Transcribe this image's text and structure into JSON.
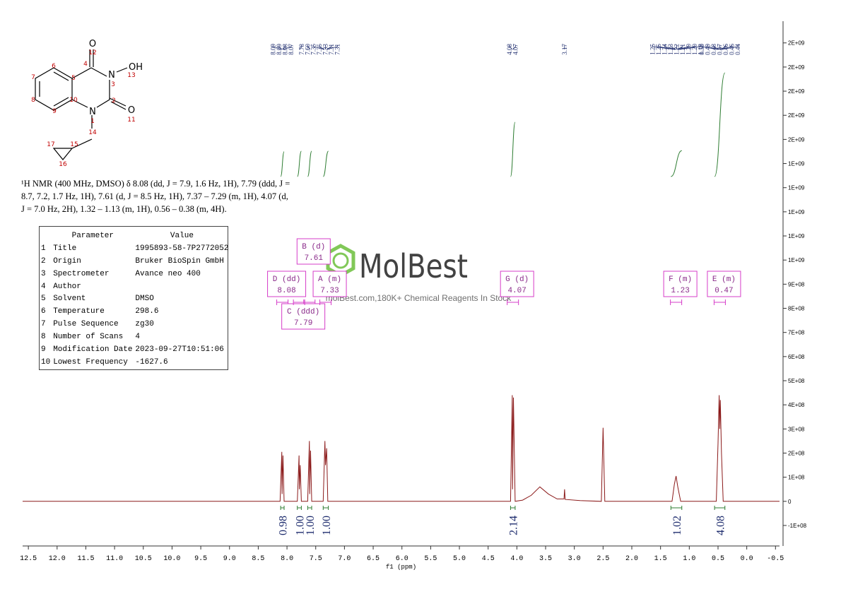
{
  "chart_data": {
    "type": "line",
    "x_label": "f1 (ppm)",
    "color": "#8b1a1a",
    "xlim": [
      12.6,
      -0.57
    ],
    "ylim": [
      -185000000,
      1990000000
    ],
    "xticks": [
      12.5,
      {
        "value": 12,
        "label": "12.0"
      },
      11.5,
      {
        "value": 11,
        "label": "11.0"
      },
      10.5,
      {
        "value": 10,
        "label": "10.0"
      },
      9.5,
      {
        "value": 9,
        "label": "9.0"
      },
      8.5,
      {
        "value": 8,
        "label": "8.0"
      },
      7.5,
      {
        "value": 7,
        "label": "7.0"
      },
      6.5,
      {
        "value": 6,
        "label": "6.0"
      },
      5.5,
      {
        "value": 5,
        "label": "5.0"
      },
      4.5,
      {
        "value": 4,
        "label": "4.0"
      },
      3.5,
      {
        "value": 3,
        "label": "3.0"
      },
      2.5,
      {
        "value": 2,
        "label": "2.0"
      },
      1.5,
      {
        "value": 1,
        "label": "1.0"
      },
      0.5,
      {
        "value": 0,
        "label": "0.0"
      },
      -0.5
    ],
    "yticks": [
      {
        "value": -100000000,
        "label": "-1E+08"
      },
      0,
      {
        "value": 100000000,
        "label": "1E+08"
      },
      {
        "value": 200000000,
        "label": "2E+08"
      },
      {
        "value": 300000000,
        "label": "3E+08"
      },
      {
        "value": 400000000,
        "label": "4E+08"
      },
      {
        "value": 500000000,
        "label": "5E+08"
      },
      {
        "value": 600000000,
        "label": "6E+08"
      },
      {
        "value": 700000000,
        "label": "7E+08"
      },
      {
        "value": 800000000,
        "label": "8E+08"
      },
      {
        "value": 900000000,
        "label": "9E+08"
      },
      {
        "value": 1000000000,
        "label": "1E+09"
      },
      {
        "value": 1100000000,
        "label": "1E+09"
      },
      {
        "value": 1200000000,
        "label": "1E+09"
      },
      {
        "value": 1300000000,
        "label": "1E+09"
      },
      {
        "value": 1400000000,
        "label": "1E+09"
      },
      {
        "value": 1500000000,
        "label": "2E+09"
      },
      {
        "value": 1600000000,
        "label": "2E+09"
      },
      {
        "value": 1700000000,
        "label": "2E+09"
      },
      {
        "value": 1800000000,
        "label": "2E+09"
      },
      {
        "value": 1900000000,
        "label": "2E+09"
      }
    ],
    "x": [
      12.6,
      8.12,
      8.09,
      8.085,
      8.07,
      8.05,
      7.82,
      7.79,
      7.785,
      7.77,
      7.75,
      7.64,
      7.61,
      7.605,
      7.59,
      7.57,
      7.37,
      7.34,
      7.33,
      7.31,
      7.29,
      4.11,
      4.08,
      4.075,
      4.06,
      4.03,
      3.9,
      3.75,
      3.6,
      3.45,
      3.3,
      3.18,
      3.17,
      3.16,
      2.9,
      2.53,
      2.5,
      2.47,
      1.3,
      1.26,
      1.23,
      1.2,
      1.15,
      0.53,
      0.5,
      0.48,
      0.47,
      0.46,
      0.44,
      0.41,
      -0.57
    ],
    "values": [
      0,
      0,
      205000000,
      30000000,
      190000000,
      0,
      0,
      190000000,
      50000000,
      150000000,
      0,
      0,
      250000000,
      30000000,
      210000000,
      0,
      0,
      250000000,
      150000000,
      220000000,
      0,
      0,
      440000000,
      50000000,
      430000000,
      0,
      5000000,
      25000000,
      60000000,
      30000000,
      10000000,
      10000000,
      50000000,
      8000000,
      3000000,
      0,
      305000000,
      0,
      0,
      70000000,
      105000000,
      60000000,
      0,
      0,
      240000000,
      440000000,
      300000000,
      420000000,
      200000000,
      0,
      0
    ],
    "peak_label_groups": [
      [
        "8.09",
        "8.09",
        "8.08",
        "8.07"
      ],
      [
        "7.78",
        "7.60"
      ],
      [
        "7.35",
        "7.35",
        "7.33",
        "7.31",
        "7.31"
      ],
      [
        "4.08",
        "4.07"
      ],
      [
        "3.17"
      ],
      [
        "1.25",
        "1.25",
        "1.24",
        "1.23",
        "1.22",
        "1.21",
        "1.20",
        "1.20",
        "1.18"
      ],
      [
        "0.50",
        "0.49",
        "0.48",
        "0.47",
        "0.46",
        "0.46",
        "0.44"
      ]
    ],
    "integrals": {
      "ranges": [
        [
          8.11,
          8.05
        ],
        [
          7.82,
          7.75
        ],
        [
          7.64,
          7.57
        ],
        [
          7.37,
          7.28
        ],
        [
          4.11,
          4.03
        ],
        [
          1.32,
          1.13
        ],
        [
          0.56,
          0.38
        ]
      ],
      "values": [
        0.98,
        1,
        1,
        1,
        2.14,
        1.02,
        4.08
      ],
      "value_labels": [
        "0.98",
        "1.00",
        "1.00",
        "1.00",
        "2.14",
        "1.02",
        "4.08"
      ]
    },
    "multiplets": [
      {
        "name": "D (dd)",
        "shift": 8.08
      },
      {
        "name": "B (d)",
        "shift": 7.61
      },
      {
        "name": "C (ddd)",
        "shift": 7.79
      },
      {
        "name": "A (m)",
        "shift": 7.33
      },
      {
        "name": "G (d)",
        "shift": 4.07
      },
      {
        "name": "F (m)",
        "shift": 1.23
      },
      {
        "name": "E (m)",
        "shift": 0.47
      }
    ]
  },
  "description": "¹H NMR (400 MHz, DMSO) δ 8.08 (dd, J = 7.9, 1.6 Hz, 1H), 7.79 (ddd, J = 8.7, 7.2, 1.7 Hz, 1H), 7.61 (d, J = 8.5 Hz, 1H), 7.37 – 7.29 (m, 1H), 4.07 (d, J = 7.0 Hz, 2H), 1.32 – 1.13 (m, 1H), 0.56 – 0.38 (m, 4H).",
  "parameters": {
    "header": [
      "Parameter",
      "Value"
    ],
    "rows": [
      [
        "1",
        "Title",
        "1995893-58-7P2772052"
      ],
      [
        "2",
        "Origin",
        "Bruker BioSpin GmbH"
      ],
      [
        "3",
        "Spectrometer",
        "Avance neo 400"
      ],
      [
        "4",
        "Author"
      ],
      [
        "5",
        "Solvent",
        "DMSO"
      ],
      [
        "6",
        "Temperature",
        "298.6"
      ],
      [
        "7",
        "Pulse Sequence",
        "zg30"
      ],
      [
        "8",
        "Number of Scans",
        "4"
      ],
      [
        "9",
        "Modification Date",
        "2023-09-27T10:51:06"
      ],
      [
        "10",
        "Lowest Frequency",
        "-1627.6"
      ]
    ]
  },
  "structure": {
    "atoms": [
      "O",
      "OH",
      "N",
      "O",
      "N"
    ],
    "numbers": [
      "12",
      "4",
      "13",
      "3",
      "2",
      "11",
      "1",
      "14",
      "15",
      "17",
      "16",
      "5",
      "10",
      "6",
      "7",
      "8",
      "9"
    ]
  },
  "watermark": {
    "brand": "MolBest",
    "tagline": "molBest.com,180K+ Chemical Reagents In Stock"
  }
}
